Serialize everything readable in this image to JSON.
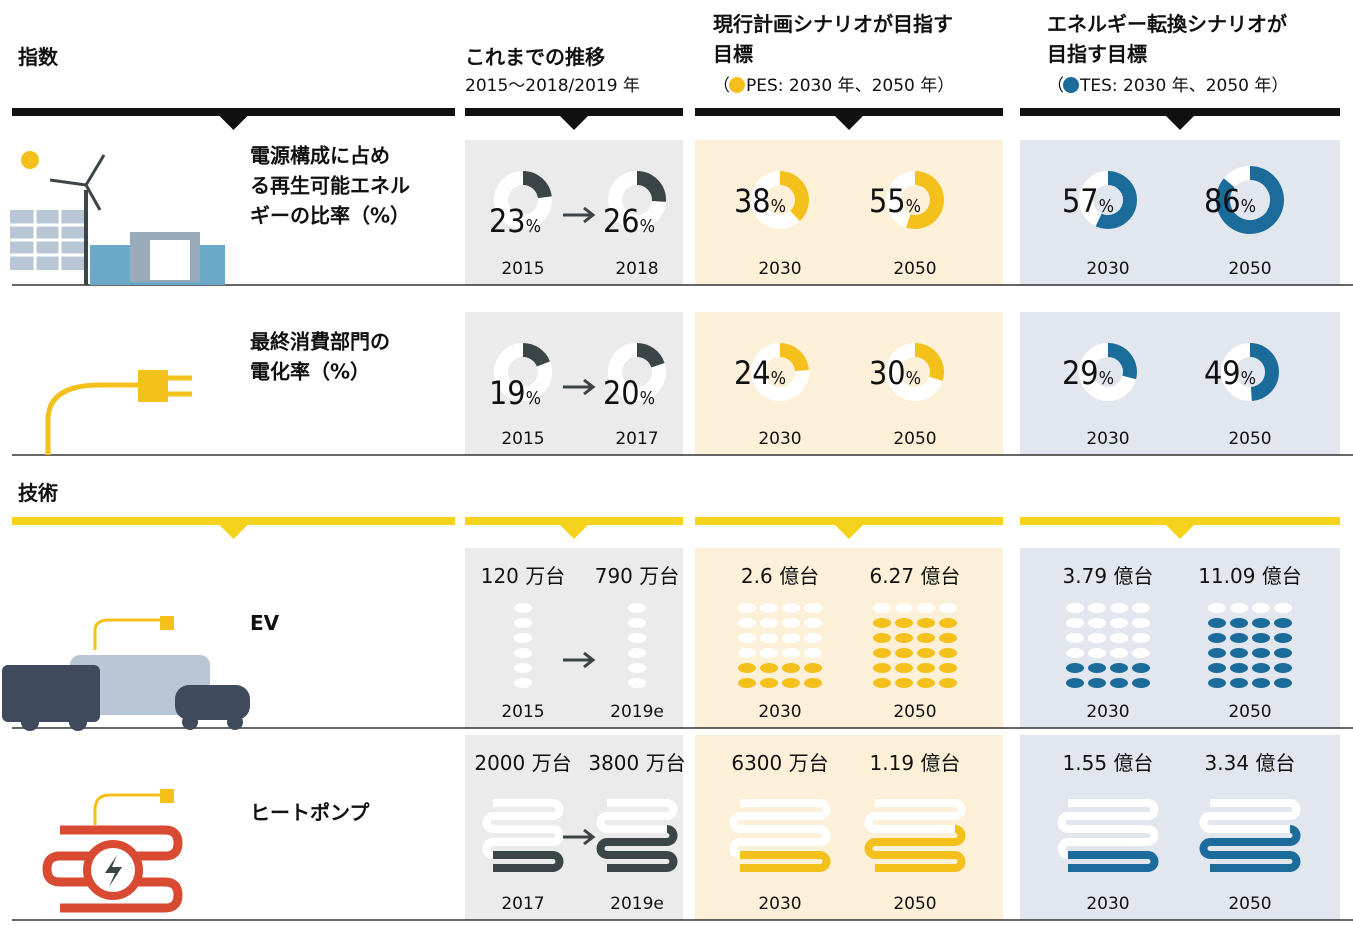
{
  "header": {
    "index_label": "指数",
    "columns": [
      {
        "title": [
          "これまでの推移"
        ],
        "subtitle": "2015～2018/2019 年",
        "color": "#3b4446",
        "background": "#ebebeb"
      },
      {
        "title": [
          "現行計画シナリオが目指す",
          "目標"
        ],
        "subtitle_open": "（",
        "subtitle": "PES: 2030 年、2050 年）",
        "color": "#f4c01b",
        "background": "#fcf0d8"
      },
      {
        "title": [
          "エネルギー転換シナリオが",
          "目指す目標"
        ],
        "subtitle_open": "（",
        "subtitle": "TES: 2030 年、2050 年）",
        "color": "#1b6b9b",
        "background": "#e2e7ef"
      }
    ]
  },
  "indicators": {
    "unit": "%",
    "rows": [
      {
        "label": [
          "電源構成に占め",
          "る再生可能エネル",
          "ギーの比率（%）"
        ],
        "cells": [
          {
            "year": "2015",
            "value": 23
          },
          {
            "year": "2018",
            "value": 26
          },
          {
            "year": "2030",
            "value": 38
          },
          {
            "year": "2050",
            "value": 55
          },
          {
            "year": "2030",
            "value": 57
          },
          {
            "year": "2050",
            "value": 86
          }
        ]
      },
      {
        "label": [
          "最終消費部門の",
          "電化率（%）"
        ],
        "cells": [
          {
            "year": "2015",
            "value": 19
          },
          {
            "year": "2017",
            "value": 20
          },
          {
            "year": "2030",
            "value": 24
          },
          {
            "year": "2050",
            "value": 30
          },
          {
            "year": "2030",
            "value": 29
          },
          {
            "year": "2050",
            "value": 49
          }
        ]
      }
    ]
  },
  "technology": {
    "title": "技術",
    "rows": [
      {
        "label": [
          "EV"
        ],
        "cells": [
          {
            "year": "2015",
            "value": "120 万台"
          },
          {
            "year": "2019e",
            "value": "790 万台"
          },
          {
            "year": "2030",
            "value": "2.6 億台"
          },
          {
            "year": "2050",
            "value": "6.27 億台"
          },
          {
            "year": "2030",
            "value": "3.79 億台"
          },
          {
            "year": "2050",
            "value": "11.09 億台"
          }
        ]
      },
      {
        "label": [
          "ヒートポンプ"
        ],
        "cells": [
          {
            "year": "2017",
            "value": "2000 万台"
          },
          {
            "year": "2019e",
            "value": "3800 万台"
          },
          {
            "year": "2030",
            "value": "6300 万台"
          },
          {
            "year": "2050",
            "value": "1.19 億台"
          },
          {
            "year": "2030",
            "value": "1.55 億台"
          },
          {
            "year": "2050",
            "value": "3.34 億台"
          }
        ]
      }
    ]
  }
}
